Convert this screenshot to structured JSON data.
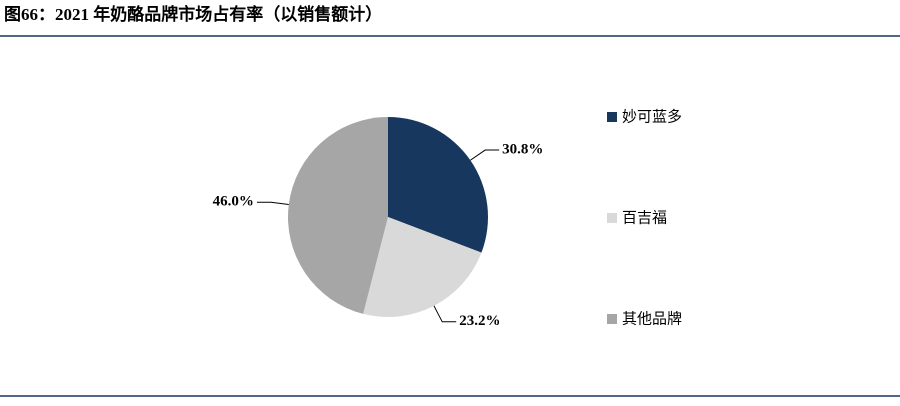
{
  "chart_data": {
    "type": "pie",
    "title": "图66：2021 年奶酪品牌市场占有率（以销售额计）",
    "categories": [
      "妙可蓝多",
      "百吉福",
      "其他品牌"
    ],
    "values": [
      30.8,
      23.2,
      46.0
    ],
    "value_labels": [
      "30.8%",
      "23.2%",
      "46.0%"
    ],
    "colors": [
      "#17375e",
      "#d9d9d9",
      "#a6a6a6"
    ],
    "legend": "right"
  }
}
